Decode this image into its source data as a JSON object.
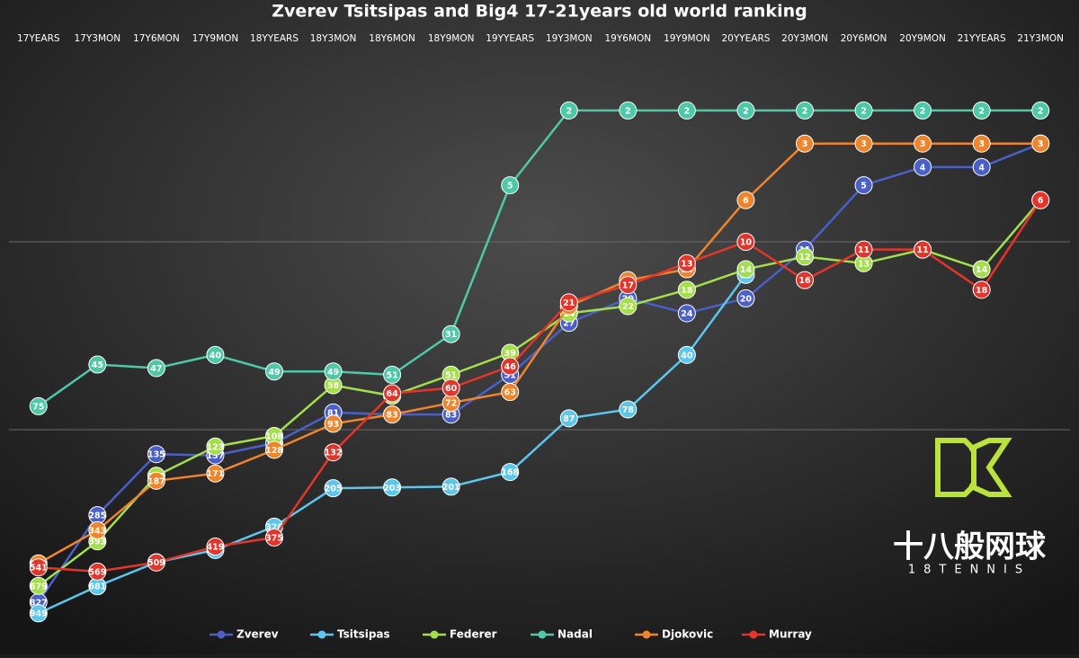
{
  "chart_data": {
    "type": "line",
    "title": "Zverev Tsitsipas and Big4 17-21years old world ranking",
    "categories": [
      "17YEARS",
      "17Y3MON",
      "17Y6MON",
      "17Y9MON",
      "18YYEARS",
      "18Y3MON",
      "18Y6MON",
      "18Y9MON",
      "19YYEARS",
      "19Y3MON",
      "19Y6MON",
      "19Y9MON",
      "20YYEARS",
      "20Y3MON",
      "20Y6MON",
      "20Y9MON",
      "21YYEARS",
      "21Y3MON"
    ],
    "series": [
      {
        "name": "Zverev",
        "color": "#4a5fc8",
        "values": [
          827,
          285,
          135,
          137,
          118,
          81,
          83,
          83,
          51,
          27,
          20,
          24,
          20,
          11,
          5,
          4,
          4,
          3
        ]
      },
      {
        "name": "Tsitsipas",
        "color": "#5bc6ee",
        "values": [
          949,
          681,
          508,
          437,
          328,
          205,
          203,
          201,
          168,
          87,
          78,
          40,
          15,
          null,
          null,
          null,
          null,
          null
        ]
      },
      {
        "name": "Federer",
        "color": "#a3df4a",
        "values": [
          679,
          393,
          176,
          123,
          108,
          58,
          66,
          51,
          39,
          24,
          22,
          18,
          14,
          12,
          13,
          11,
          14,
          6
        ]
      },
      {
        "name": "Nadal",
        "color": "#4ec9a8",
        "values": [
          75,
          45,
          47,
          40,
          49,
          49,
          51,
          31,
          5,
          2,
          2,
          2,
          2,
          2,
          2,
          2,
          2,
          2
        ]
      },
      {
        "name": "Djokovic",
        "color": "#f0842a",
        "values": [
          515,
          343,
          187,
          171,
          128,
          93,
          83,
          72,
          63,
          22,
          16,
          14,
          6,
          3,
          3,
          3,
          3,
          3
        ]
      },
      {
        "name": "Murray",
        "color": "#e5352b",
        "values": [
          541,
          569,
          509,
          419,
          375,
          132,
          64,
          60,
          46,
          21,
          17,
          13,
          10,
          16,
          11,
          11,
          18,
          6
        ]
      }
    ],
    "ylim": [
      1,
      1000
    ],
    "yticks": [
      10,
      100
    ],
    "log_scale": true,
    "y_inverted": true,
    "grid": true,
    "legend": "bottom",
    "watermark": {
      "text": "十八般网球",
      "subtext": "18TENNIS"
    }
  }
}
